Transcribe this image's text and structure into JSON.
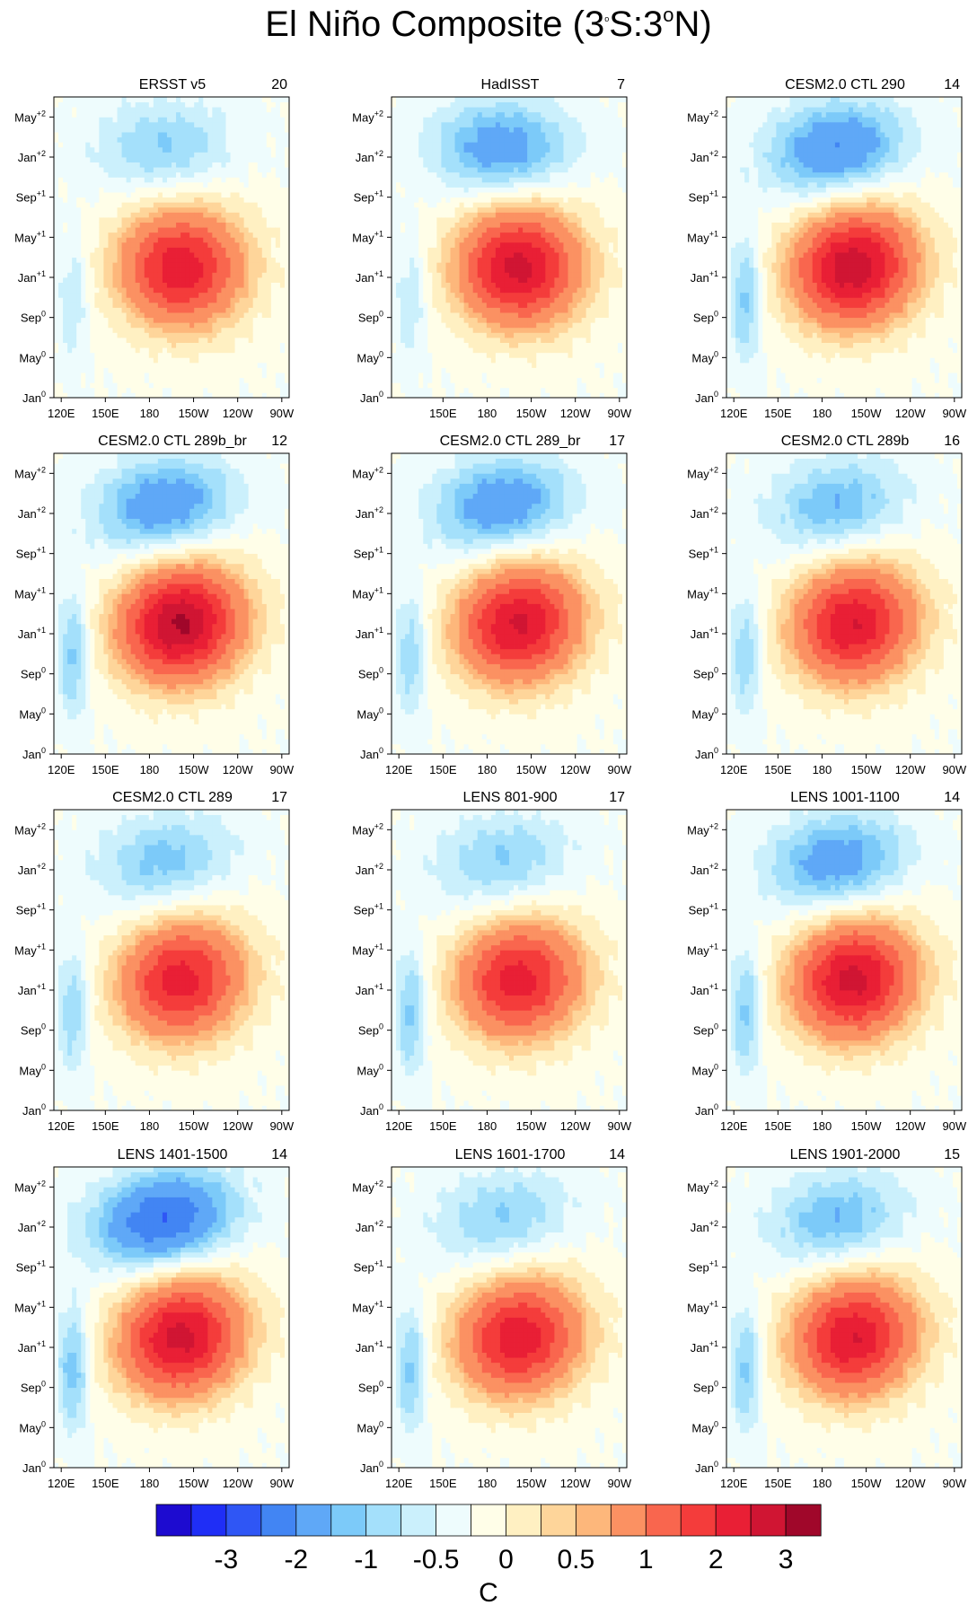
{
  "title": {
    "main": "El Niño Composite (3",
    "deg1": "o",
    "mid": "S:3",
    "deg2": "o",
    "end": "N)"
  },
  "chart_data": {
    "type": "heatmap",
    "description_axes": {
      "x_ticks": [
        "120E",
        "150E",
        "180",
        "150W",
        "120W",
        "90W"
      ],
      "y_ticks": [
        {
          "base": "Jan",
          "sup": "0"
        },
        {
          "base": "May",
          "sup": "0"
        },
        {
          "base": "Sep",
          "sup": "0"
        },
        {
          "base": "Jan",
          "sup": "+1"
        },
        {
          "base": "May",
          "sup": "+1"
        },
        {
          "base": "Sep",
          "sup": "+1"
        },
        {
          "base": "Jan",
          "sup": "+2"
        },
        {
          "base": "May",
          "sup": "+2"
        }
      ]
    },
    "panels": [
      {
        "name": "ERSST v5",
        "count": "20",
        "peak": 2.3,
        "neg": 0.8,
        "westCold": 0.5,
        "slope": 0.0,
        "showX": [
          "120E",
          "150E",
          "180",
          "150W",
          "120W",
          "90W"
        ]
      },
      {
        "name": "HadISST",
        "count": "7",
        "peak": 2.6,
        "neg": 1.3,
        "westCold": 0.5,
        "slope": 0.0,
        "showX": [
          "150E",
          "180",
          "150W",
          "120W",
          "90W"
        ]
      },
      {
        "name": "CESM2.0 CTL 290",
        "count": "14",
        "peak": 2.8,
        "neg": 1.5,
        "westCold": 0.9,
        "slope": 0.4,
        "showX": [
          "120E",
          "150E",
          "180",
          "150W",
          "120W",
          "90W"
        ]
      },
      {
        "name": "CESM2.0 CTL 289b_br",
        "count": "12",
        "peak": 3.0,
        "neg": 1.4,
        "westCold": 0.9,
        "slope": 0.4,
        "showX": [
          "120E",
          "150E",
          "180",
          "150W",
          "120W",
          "90W"
        ]
      },
      {
        "name": "CESM2.0 CTL 289_br",
        "count": "17",
        "peak": 2.5,
        "neg": 1.4,
        "westCold": 0.8,
        "slope": 0.4,
        "showX": [
          "120E",
          "150E",
          "180",
          "150W",
          "120W",
          "90W"
        ]
      },
      {
        "name": "CESM2.0 CTL 289b",
        "count": "16",
        "peak": 2.4,
        "neg": 1.0,
        "westCold": 0.8,
        "slope": 0.4,
        "showX": [
          "120E",
          "150E",
          "180",
          "150W",
          "120W",
          "90W"
        ]
      },
      {
        "name": "CESM2.0 CTL 289",
        "count": "17",
        "peak": 2.2,
        "neg": 0.9,
        "westCold": 0.8,
        "slope": 0.4,
        "showX": [
          "120E",
          "150E",
          "180",
          "150W",
          "120W",
          "90W"
        ]
      },
      {
        "name": "LENS 801-900",
        "count": "17",
        "peak": 2.2,
        "neg": 0.8,
        "westCold": 0.9,
        "slope": 0.3,
        "showX": [
          "120E",
          "150E",
          "180",
          "150W",
          "120W",
          "90W"
        ]
      },
      {
        "name": "LENS 1001-1100",
        "count": "14",
        "peak": 2.6,
        "neg": 1.3,
        "westCold": 0.9,
        "slope": 0.4,
        "showX": [
          "120E",
          "150E",
          "180",
          "150W",
          "120W",
          "90W"
        ]
      },
      {
        "name": "LENS 1401-1500",
        "count": "14",
        "peak": 2.6,
        "neg": 2.0,
        "westCold": 1.0,
        "slope": 0.5,
        "showX": [
          "120E",
          "150E",
          "180",
          "150W",
          "120W",
          "90W"
        ]
      },
      {
        "name": "LENS 1601-1700",
        "count": "14",
        "peak": 2.3,
        "neg": 0.8,
        "westCold": 0.9,
        "slope": 0.4,
        "showX": [
          "120E",
          "150E",
          "180",
          "150W",
          "120W",
          "90W"
        ]
      },
      {
        "name": "LENS 1901-2000",
        "count": "15",
        "peak": 2.4,
        "neg": 1.0,
        "westCold": 0.9,
        "slope": 0.4,
        "showX": [
          "120E",
          "150E",
          "180",
          "150W",
          "120W",
          "90W"
        ]
      }
    ],
    "colorbar": {
      "levels": [
        -3.5,
        -3,
        -2.5,
        -2,
        -1.5,
        -1,
        -0.75,
        -0.5,
        -0.25,
        0,
        0.25,
        0.5,
        0.75,
        1,
        1.5,
        2,
        2.5,
        3,
        3.5
      ],
      "colors": [
        "#1d0bd0",
        "#1f2ef6",
        "#2f56f5",
        "#4285f3",
        "#5fa8f7",
        "#7ccaf9",
        "#a4e0fb",
        "#cbf0fc",
        "#eefcfd",
        "#fffee8",
        "#fff0c2",
        "#fed59a",
        "#fdb77b",
        "#fb9162",
        "#f9664e",
        "#f43c3b",
        "#e91f35",
        "#d01533",
        "#a0072a"
      ],
      "labels": [
        {
          "text": "-3",
          "at": 1
        },
        {
          "text": "-2",
          "at": 3
        },
        {
          "text": "-1",
          "at": 5
        },
        {
          "text": "-0.5",
          "at": 7
        },
        {
          "text": "0",
          "at": 9
        },
        {
          "text": "0.5",
          "at": 11
        },
        {
          "text": "1",
          "at": 13
        },
        {
          "text": "2",
          "at": 15
        },
        {
          "text": "3",
          "at": 17
        }
      ],
      "unit": "C"
    }
  }
}
